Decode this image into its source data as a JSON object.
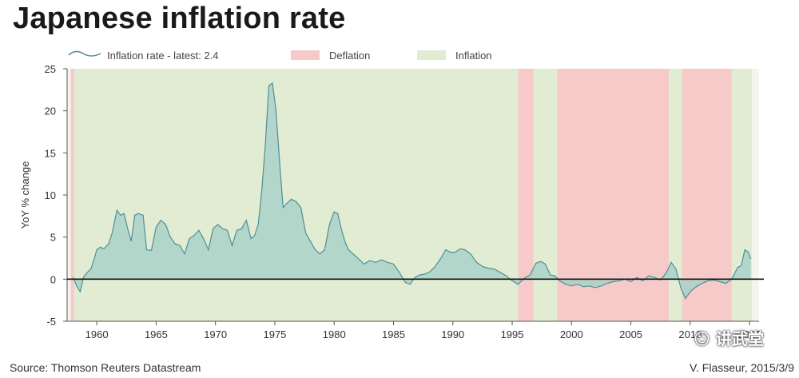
{
  "chart_data": {
    "type": "area",
    "title": "Japanese inflation rate",
    "ylabel": "YoY % change",
    "xlabel": "",
    "ylim": [
      -5,
      25
    ],
    "xlim": [
      1957.5,
      2015.8
    ],
    "yticks": [
      -5,
      0,
      5,
      10,
      15,
      20,
      25
    ],
    "xticks": [
      1960,
      1965,
      1970,
      1975,
      1980,
      1985,
      1990,
      1995,
      2000,
      2005,
      2010,
      2015
    ],
    "legend_position": "top",
    "series": [
      {
        "name": "Inflation rate - latest: 2.4",
        "color": "#4f8f9a",
        "fill": "#a9d2c7",
        "x": [
          1958.0,
          1958.3,
          1958.6,
          1958.9,
          1959.2,
          1959.5,
          1959.8,
          1960.0,
          1960.3,
          1960.6,
          1961.0,
          1961.3,
          1961.7,
          1962.0,
          1962.3,
          1962.6,
          1962.9,
          1963.2,
          1963.5,
          1963.9,
          1964.2,
          1964.6,
          1965.0,
          1965.4,
          1965.8,
          1966.2,
          1966.6,
          1967.0,
          1967.4,
          1967.8,
          1968.2,
          1968.6,
          1969.0,
          1969.4,
          1969.8,
          1970.2,
          1970.6,
          1971.0,
          1971.4,
          1971.8,
          1972.2,
          1972.6,
          1973.0,
          1973.3,
          1973.6,
          1973.9,
          1974.2,
          1974.5,
          1974.8,
          1975.1,
          1975.4,
          1975.7,
          1976.0,
          1976.4,
          1976.8,
          1977.2,
          1977.6,
          1978.0,
          1978.4,
          1978.8,
          1979.2,
          1979.6,
          1980.0,
          1980.3,
          1980.6,
          1980.9,
          1981.2,
          1981.6,
          1982.0,
          1982.5,
          1983.0,
          1983.5,
          1984.0,
          1984.5,
          1985.0,
          1985.5,
          1986.0,
          1986.4,
          1986.8,
          1987.2,
          1987.6,
          1988.0,
          1988.5,
          1989.0,
          1989.4,
          1989.8,
          1990.2,
          1990.6,
          1991.0,
          1991.5,
          1992.0,
          1992.5,
          1993.0,
          1993.5,
          1994.0,
          1994.5,
          1995.0,
          1995.5,
          1996.0,
          1996.5,
          1997.0,
          1997.4,
          1997.8,
          1998.2,
          1998.6,
          1999.0,
          1999.5,
          2000.0,
          2000.5,
          2001.0,
          2001.5,
          2002.0,
          2002.5,
          2003.0,
          2003.5,
          2004.0,
          2004.5,
          2005.0,
          2005.5,
          2006.0,
          2006.5,
          2007.0,
          2007.5,
          2008.0,
          2008.4,
          2008.8,
          2009.2,
          2009.6,
          2010.0,
          2010.5,
          2011.0,
          2011.5,
          2012.0,
          2012.5,
          2013.0,
          2013.5,
          2014.0,
          2014.3,
          2014.6,
          2014.9,
          2015.1
        ],
        "y": [
          0.2,
          -0.8,
          -1.5,
          0.3,
          0.8,
          1.2,
          2.5,
          3.5,
          3.8,
          3.6,
          4.2,
          5.5,
          8.2,
          7.6,
          7.8,
          6.0,
          4.5,
          7.6,
          7.8,
          7.6,
          3.5,
          3.4,
          6.2,
          7.0,
          6.5,
          5.0,
          4.2,
          4.0,
          3.0,
          4.8,
          5.2,
          5.8,
          4.8,
          3.5,
          6.0,
          6.5,
          6.0,
          5.8,
          4.0,
          5.8,
          6.0,
          7.0,
          4.8,
          5.2,
          6.5,
          10.5,
          16.0,
          23.0,
          23.3,
          20.0,
          14.0,
          8.5,
          9.0,
          9.5,
          9.2,
          8.5,
          5.5,
          4.5,
          3.5,
          3.0,
          3.5,
          6.5,
          8.0,
          7.8,
          6.0,
          4.5,
          3.5,
          3.0,
          2.5,
          1.8,
          2.2,
          2.0,
          2.3,
          2.0,
          1.8,
          0.8,
          -0.4,
          -0.6,
          0.2,
          0.5,
          0.6,
          0.8,
          1.5,
          2.5,
          3.5,
          3.2,
          3.2,
          3.6,
          3.5,
          3.0,
          2.0,
          1.5,
          1.3,
          1.2,
          0.8,
          0.4,
          -0.2,
          -0.6,
          0.1,
          0.5,
          1.9,
          2.1,
          1.8,
          0.5,
          0.4,
          -0.2,
          -0.6,
          -0.8,
          -0.6,
          -0.9,
          -0.8,
          -1.0,
          -0.8,
          -0.5,
          -0.3,
          -0.2,
          0.0,
          -0.3,
          0.2,
          -0.2,
          0.4,
          0.2,
          -0.1,
          0.8,
          2.0,
          1.2,
          -1.0,
          -2.3,
          -1.5,
          -0.9,
          -0.5,
          -0.2,
          -0.1,
          -0.3,
          -0.5,
          0.0,
          1.4,
          1.6,
          3.5,
          3.2,
          2.4
        ]
      }
    ],
    "regions": [
      {
        "name": "Deflation",
        "color": "#f7caca",
        "from": 1957.8,
        "to": 1958.1
      },
      {
        "name": "Inflation",
        "color": "#e1ecd3",
        "from": 1958.1,
        "to": 1995.5
      },
      {
        "name": "Deflation",
        "color": "#f7caca",
        "from": 1995.5,
        "to": 1996.8
      },
      {
        "name": "Inflation",
        "color": "#e1ecd3",
        "from": 1996.8,
        "to": 1998.8
      },
      {
        "name": "Deflation",
        "color": "#f7caca",
        "from": 1998.8,
        "to": 2008.2
      },
      {
        "name": "Inflation",
        "color": "#e1ecd3",
        "from": 2008.2,
        "to": 2009.3
      },
      {
        "name": "Deflation",
        "color": "#f7caca",
        "from": 2009.3,
        "to": 2013.5
      },
      {
        "name": "Inflation",
        "color": "#e1ecd3",
        "from": 2013.5,
        "to": 2015.2
      }
    ],
    "legend": [
      {
        "label": "Inflation rate - latest: 2.4",
        "kind": "line"
      },
      {
        "label": "Deflation",
        "kind": "patch",
        "color": "#f7caca"
      },
      {
        "label": "Inflation",
        "kind": "patch",
        "color": "#e1ecd3"
      }
    ]
  },
  "footer": {
    "source": "Source: Thomson Reuters Datastream",
    "credit": "V. Flasseur, 2015/3/9"
  },
  "watermark": "讲武堂"
}
